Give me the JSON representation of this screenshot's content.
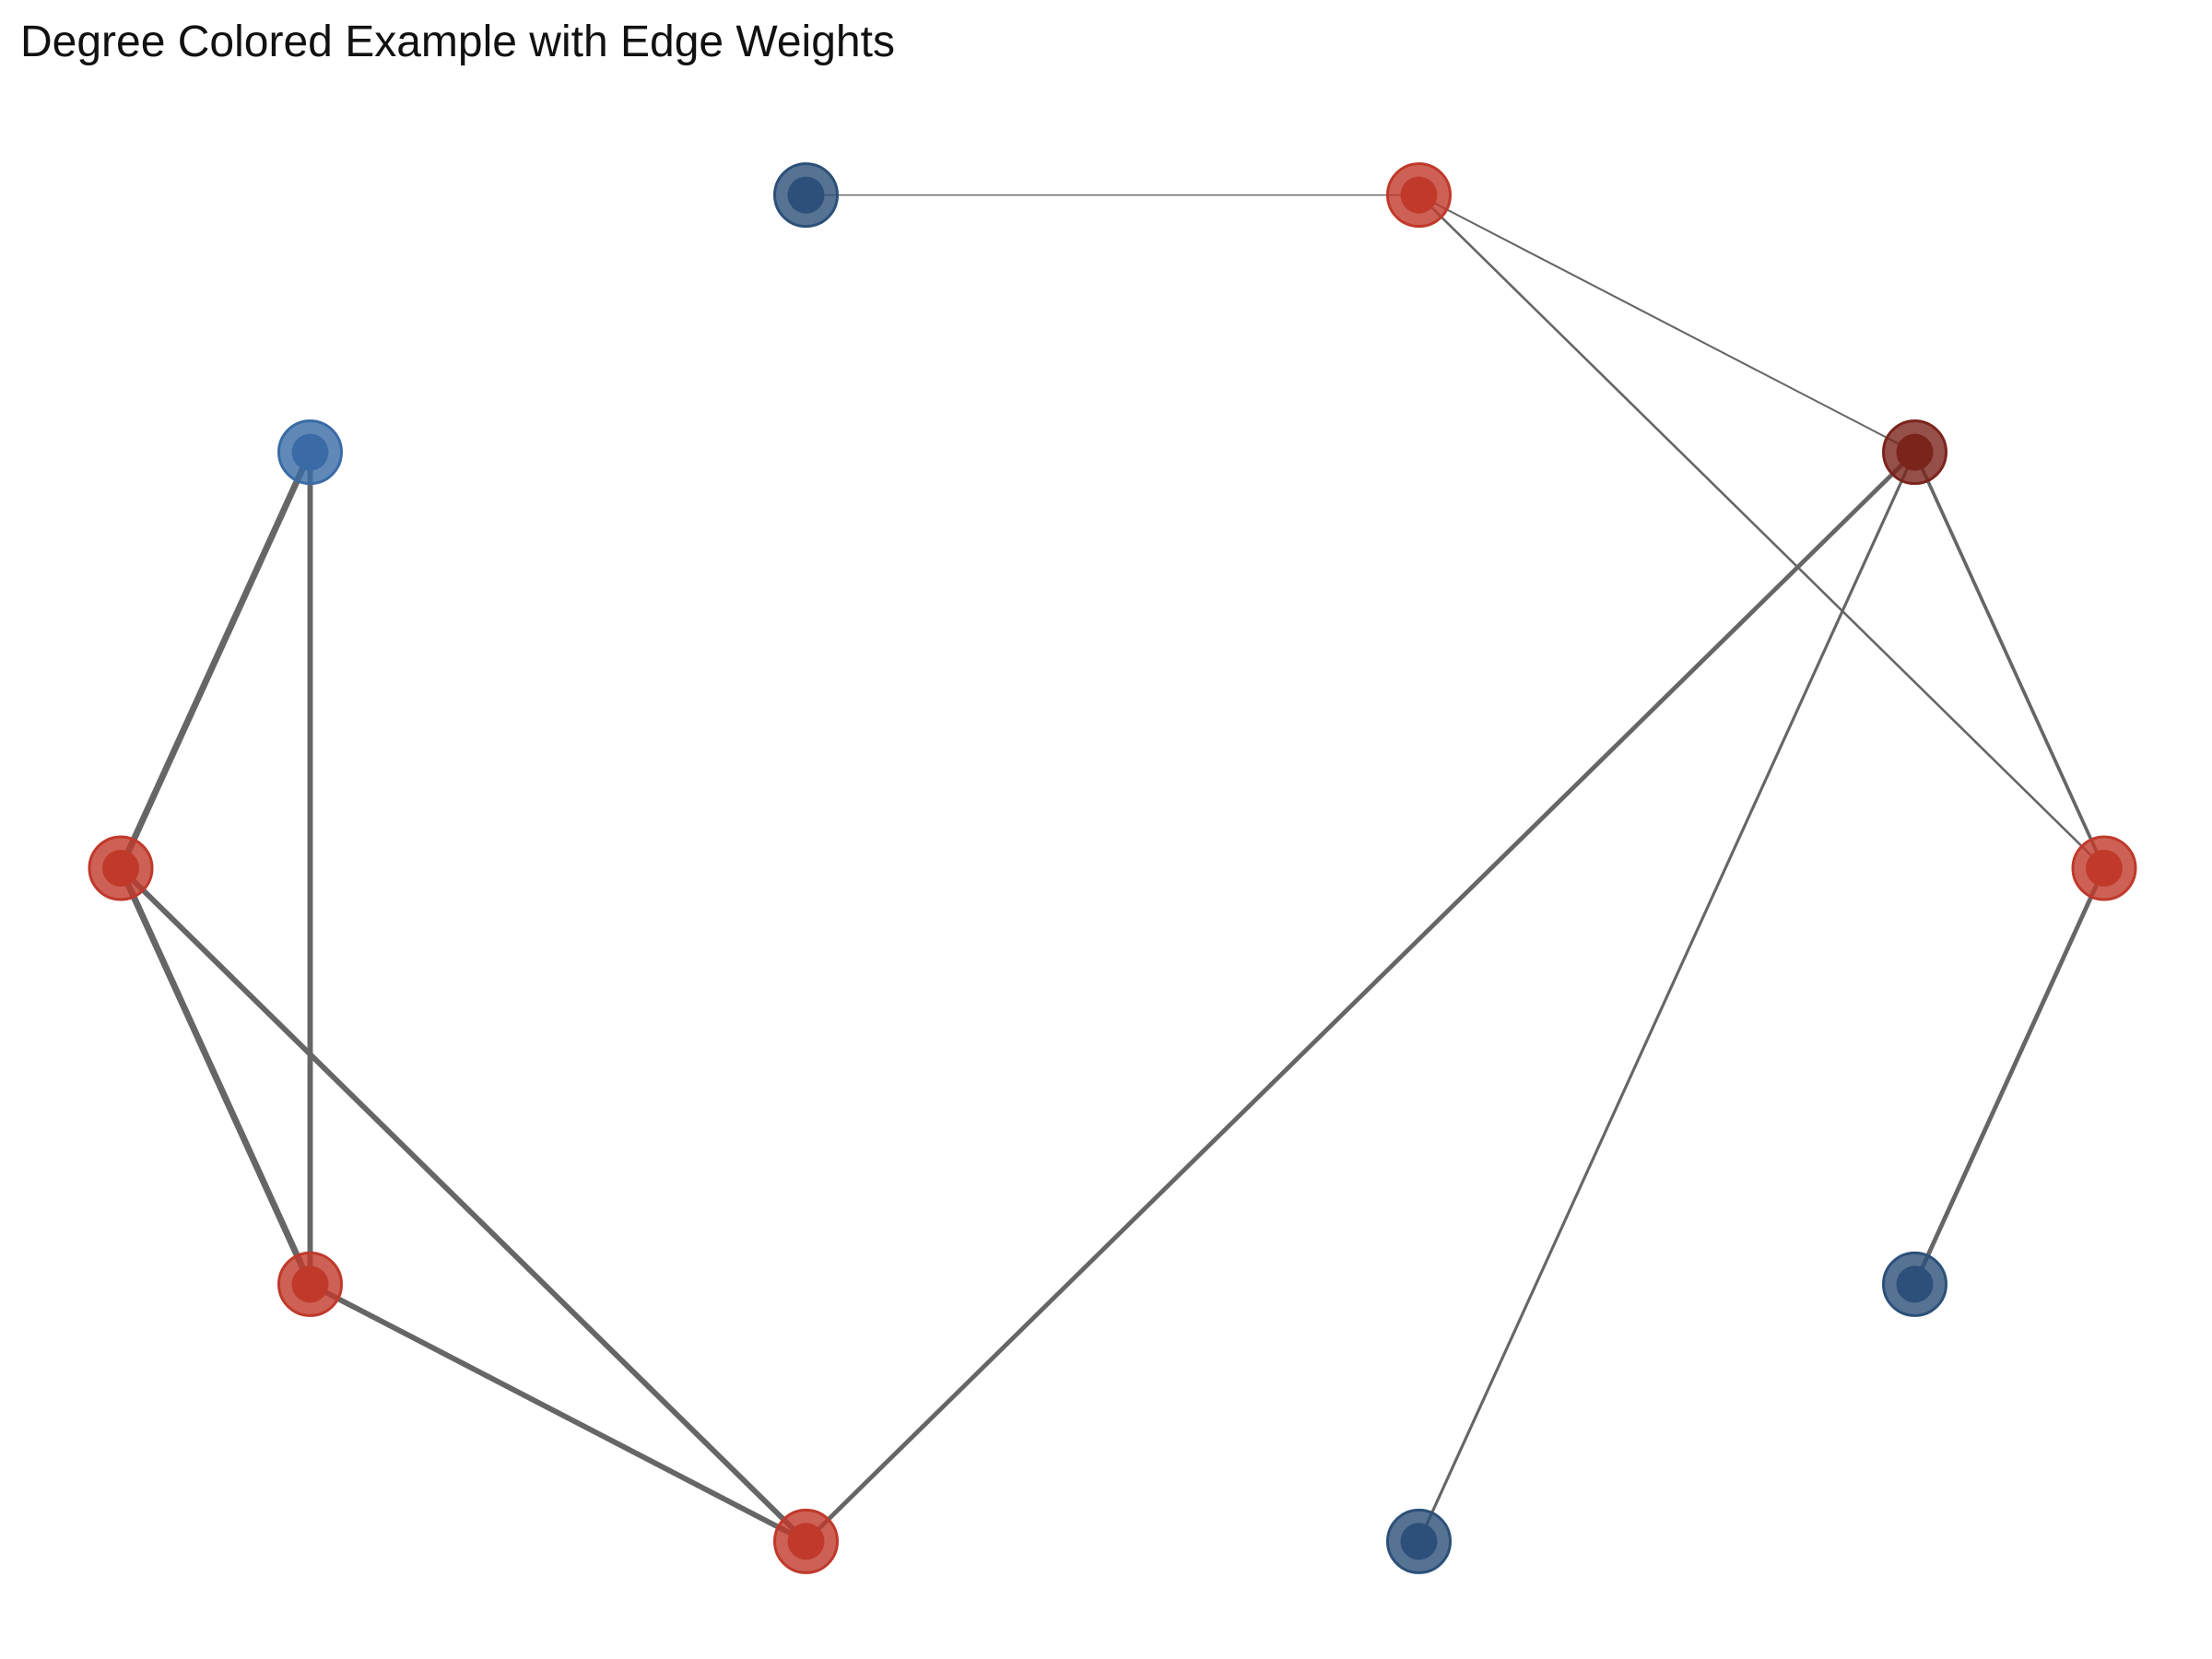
{
  "title": "Degree Colored Example with Edge Weights",
  "graph": {
    "layout": "circular",
    "node_colors": {
      "degree_1": "#2c5079",
      "degree_2": "#3a6ba6",
      "degree_3": "#c0392b",
      "degree_4": "#7b241c"
    },
    "edge_color": "#666666",
    "nodes": [
      {
        "id": "n0",
        "degree": 1
      },
      {
        "id": "n1",
        "degree": 3
      },
      {
        "id": "n2",
        "degree": 4
      },
      {
        "id": "n3",
        "degree": 3
      },
      {
        "id": "n4",
        "degree": 1
      },
      {
        "id": "n5",
        "degree": 1
      },
      {
        "id": "n6",
        "degree": 3
      },
      {
        "id": "n7",
        "degree": 3
      },
      {
        "id": "n8",
        "degree": 3
      },
      {
        "id": "n9",
        "degree": 2
      }
    ],
    "edges": [
      {
        "source": "n0",
        "target": "n1",
        "weight": 1.0
      },
      {
        "source": "n1",
        "target": "n2",
        "weight": 1.5
      },
      {
        "source": "n1",
        "target": "n3",
        "weight": 2.0
      },
      {
        "source": "n2",
        "target": "n3",
        "weight": 3.0
      },
      {
        "source": "n2",
        "target": "n6",
        "weight": 4.0
      },
      {
        "source": "n2",
        "target": "n5",
        "weight": 2.5
      },
      {
        "source": "n3",
        "target": "n4",
        "weight": 4.0
      },
      {
        "source": "n9",
        "target": "n8",
        "weight": 6.0
      },
      {
        "source": "n9",
        "target": "n7",
        "weight": 5.0
      },
      {
        "source": "n8",
        "target": "n7",
        "weight": 6.0
      },
      {
        "source": "n8",
        "target": "n6",
        "weight": 5.0
      },
      {
        "source": "n7",
        "target": "n6",
        "weight": 5.0
      }
    ]
  }
}
